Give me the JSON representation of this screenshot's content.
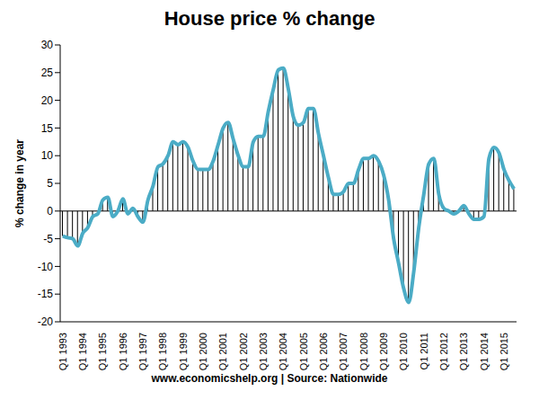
{
  "chart_data": {
    "type": "line",
    "title": "House price % change",
    "y_label": "% change in year",
    "annotation": "www.economicshelp.org | Source: Nationwide",
    "categories": [
      "Q1 1993",
      null,
      null,
      null,
      "Q1 1994",
      null,
      null,
      null,
      "Q1 1995",
      null,
      null,
      null,
      "Q1 1996",
      null,
      null,
      null,
      "Q1 1997",
      null,
      null,
      null,
      "Q1 1998",
      null,
      null,
      null,
      "Q1 1999",
      null,
      null,
      null,
      "Q1 2000",
      null,
      null,
      null,
      "Q1 2001",
      null,
      null,
      null,
      "Q1 2002",
      null,
      null,
      null,
      "Q1 2003",
      null,
      null,
      null,
      "Q1 2004",
      null,
      null,
      null,
      "Q1 2005",
      null,
      null,
      null,
      "Q1 2006",
      null,
      null,
      null,
      "Q1 2007",
      null,
      null,
      null,
      "Q1 2008",
      null,
      null,
      null,
      "Q1 2009",
      null,
      null,
      null,
      "Q1 2010",
      null,
      null,
      null,
      "Q1 2011",
      null,
      null,
      null,
      "Q1 2012",
      null,
      null,
      null,
      "Q1 2013",
      null,
      null,
      null,
      "Q1 2014",
      null,
      null,
      null,
      "Q1 2015",
      null,
      null
    ],
    "values": [
      -4.5,
      -4.8,
      -5,
      -6.3,
      -4,
      -3,
      -1,
      -0.5,
      2,
      2.5,
      -1,
      0,
      2.2,
      -0.5,
      0.5,
      -1,
      -2,
      2,
      4.5,
      8,
      8.5,
      10,
      12.5,
      12,
      12.5,
      11.5,
      9,
      7.5,
      7.5,
      7.5,
      9,
      12,
      15,
      16,
      13,
      10,
      8,
      8,
      12.5,
      13.5,
      13.5,
      18,
      22,
      25.5,
      25.8,
      22,
      17,
      15.5,
      16,
      18.5,
      18.5,
      14,
      10,
      6,
      3,
      3,
      3.5,
      5,
      5,
      7.5,
      9.5,
      9.5,
      10,
      9,
      6.5,
      2,
      -5,
      -9.5,
      -14,
      -16.5,
      -11,
      -3,
      3,
      8.5,
      9.5,
      3,
      0.5,
      0,
      -0.5,
      0,
      1,
      -0.5,
      -1.5,
      -1.5,
      -1,
      9.5,
      11.5,
      10.5,
      7.5,
      5.5,
      4
    ],
    "color": "#4bacc6",
    "ylim": [
      -20,
      30
    ],
    "yticks": [
      -20,
      -15,
      -10,
      -5,
      0,
      5,
      10,
      15,
      20,
      25,
      30
    ],
    "grid": false
  }
}
